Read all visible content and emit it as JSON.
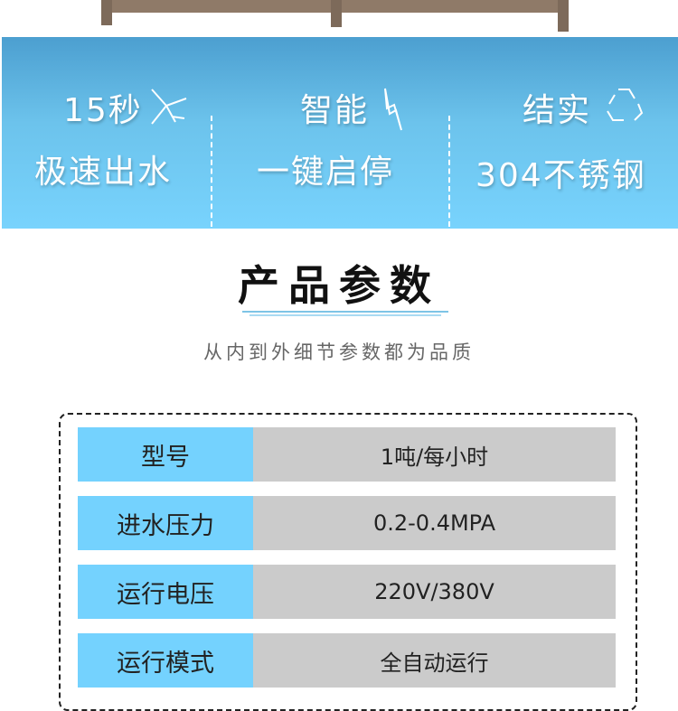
{
  "features": [
    {
      "line1": "15秒",
      "line2": "极速出水",
      "icon": "airplane-icon"
    },
    {
      "line1": "智能",
      "line2": "一键启停",
      "icon": "lightning-icon"
    },
    {
      "line1": "结实",
      "line2": "304不锈钢",
      "icon": "recycle-icon"
    }
  ],
  "section": {
    "title": "产品参数",
    "subtitle": "从内到外细节参数都为品质"
  },
  "specs": [
    {
      "label": "型号",
      "value": "1吨/每小时"
    },
    {
      "label": "进水压力",
      "value": "0.2-0.4MPA"
    },
    {
      "label": "运行电压",
      "value": "220V/380V"
    },
    {
      "label": "运行模式",
      "value": "全自动运行"
    }
  ],
  "colors": {
    "banner": "#78d3fd",
    "label_cell": "#74d2fe",
    "value_cell": "#cbcbcb"
  }
}
